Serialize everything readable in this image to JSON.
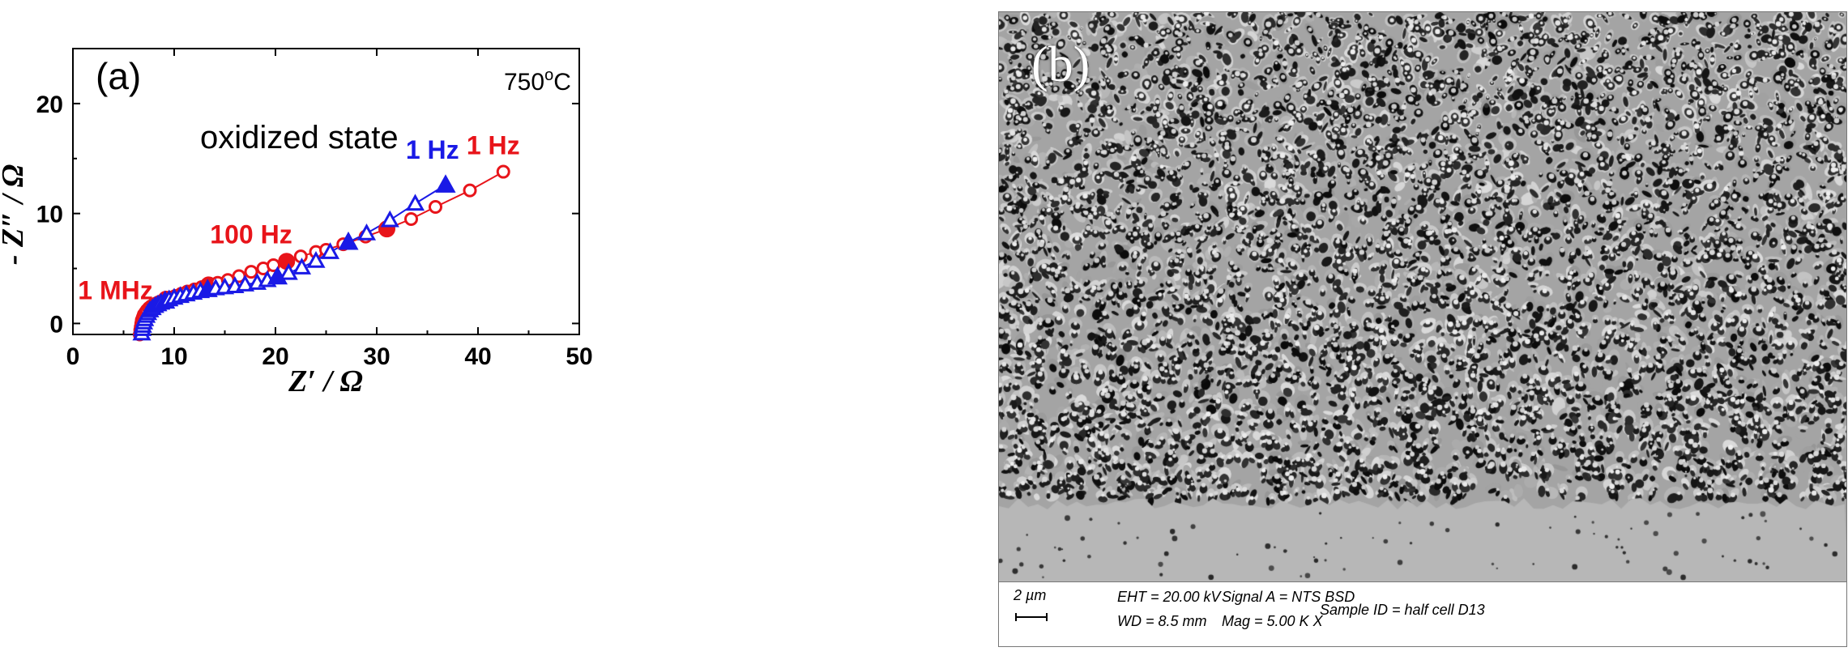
{
  "chart_data": [
    {
      "panel_label": "(a)",
      "type": "scatter",
      "xlabel": "Z′ / Ω",
      "ylabel": "- Z″ / Ω",
      "xlim": [
        0,
        50
      ],
      "ylim": [
        -1,
        25
      ],
      "x_ticks": [
        "0",
        "10",
        "20",
        "30",
        "40",
        "50"
      ],
      "y_ticks": [
        "0",
        "10",
        "20"
      ],
      "texts": {
        "temperature": "750",
        "temperature_sup": "o",
        "temperature_unit": "C",
        "state": "oxidized state"
      },
      "annotations": [
        {
          "text": "1 MHz",
          "x": 4.2,
          "y": 2.2,
          "color": "#e8141a"
        },
        {
          "text": "100 Hz",
          "x": 17.6,
          "y": 7.3,
          "color": "#e8141a"
        },
        {
          "text": "1 Hz",
          "x": 35.5,
          "y": 15.0,
          "color": "#1a1ae6"
        },
        {
          "text": "1 Hz",
          "x": 41.5,
          "y": 15.4,
          "color": "#e8141a"
        }
      ],
      "series": [
        {
          "color": "#e8141a",
          "marker": "circle",
          "points": [
            [
              6.6,
              -1.0
            ],
            [
              6.65,
              -0.6
            ],
            [
              6.7,
              -0.3
            ],
            [
              6.75,
              0.0
            ],
            [
              6.8,
              0.3
            ],
            [
              6.9,
              0.55
            ],
            [
              7.0,
              0.8
            ],
            [
              7.15,
              1.0
            ],
            [
              7.3,
              1.2
            ],
            [
              7.5,
              1.4
            ],
            [
              7.7,
              1.55
            ],
            [
              7.95,
              1.7
            ],
            [
              8.2,
              1.82
            ],
            [
              8.5,
              1.95
            ],
            [
              8.8,
              2.05
            ],
            [
              9.2,
              2.2
            ],
            [
              9.6,
              2.35
            ],
            [
              10.1,
              2.5
            ],
            [
              10.7,
              2.7
            ],
            [
              11.3,
              2.9
            ],
            [
              12.0,
              3.1
            ],
            [
              12.7,
              3.3
            ],
            [
              13.4,
              3.5
            ],
            [
              14.3,
              3.7
            ],
            [
              15.3,
              3.95
            ],
            [
              16.4,
              4.3
            ],
            [
              17.6,
              4.7
            ],
            [
              18.8,
              5.0
            ],
            [
              19.8,
              5.3
            ],
            [
              21.1,
              5.65
            ],
            [
              22.5,
              6.1
            ],
            [
              24.0,
              6.5
            ],
            [
              25.0,
              6.7
            ],
            [
              26.7,
              7.2
            ],
            [
              28.9,
              7.9
            ],
            [
              31.0,
              8.6
            ],
            [
              33.4,
              9.5
            ],
            [
              35.8,
              10.6
            ],
            [
              39.2,
              12.1
            ],
            [
              42.5,
              13.8
            ]
          ],
          "filled_indices": [
            15,
            22,
            29,
            35,
            40
          ]
        },
        {
          "color": "#1a1ae6",
          "marker": "triangle",
          "points": [
            [
              6.8,
              -0.9
            ],
            [
              6.85,
              -0.5
            ],
            [
              6.9,
              -0.2
            ],
            [
              7.0,
              0.1
            ],
            [
              7.1,
              0.4
            ],
            [
              7.25,
              0.7
            ],
            [
              7.4,
              0.95
            ],
            [
              7.6,
              1.2
            ],
            [
              7.85,
              1.4
            ],
            [
              8.1,
              1.6
            ],
            [
              8.4,
              1.75
            ],
            [
              8.7,
              1.9
            ],
            [
              9.1,
              2.05
            ],
            [
              9.5,
              2.2
            ],
            [
              10.0,
              2.35
            ],
            [
              10.6,
              2.5
            ],
            [
              11.2,
              2.65
            ],
            [
              11.9,
              2.8
            ],
            [
              12.6,
              2.95
            ],
            [
              13.3,
              3.1
            ],
            [
              14.1,
              3.2
            ],
            [
              15.0,
              3.3
            ],
            [
              16.0,
              3.4
            ],
            [
              17.0,
              3.55
            ],
            [
              18.2,
              3.7
            ],
            [
              19.2,
              3.95
            ],
            [
              20.2,
              4.25
            ],
            [
              21.3,
              4.6
            ],
            [
              22.6,
              5.1
            ],
            [
              24.0,
              5.7
            ],
            [
              25.4,
              6.5
            ],
            [
              27.2,
              7.4
            ],
            [
              29.0,
              8.2
            ],
            [
              31.3,
              9.4
            ],
            [
              33.8,
              10.9
            ],
            [
              36.8,
              12.6
            ]
          ],
          "filled_indices": [
            12,
            19,
            26,
            31,
            35
          ]
        }
      ]
    }
  ],
  "sem_image": {
    "panel_label": "(b)",
    "scale_label": "2 µm",
    "eht": "EHT = 20.00 kV",
    "wd": "WD =  8.5 mm",
    "signal": "Signal A = NTS BSD",
    "mag": "Mag =    5.00 K X",
    "sample": "Sample ID = half cell D13"
  }
}
